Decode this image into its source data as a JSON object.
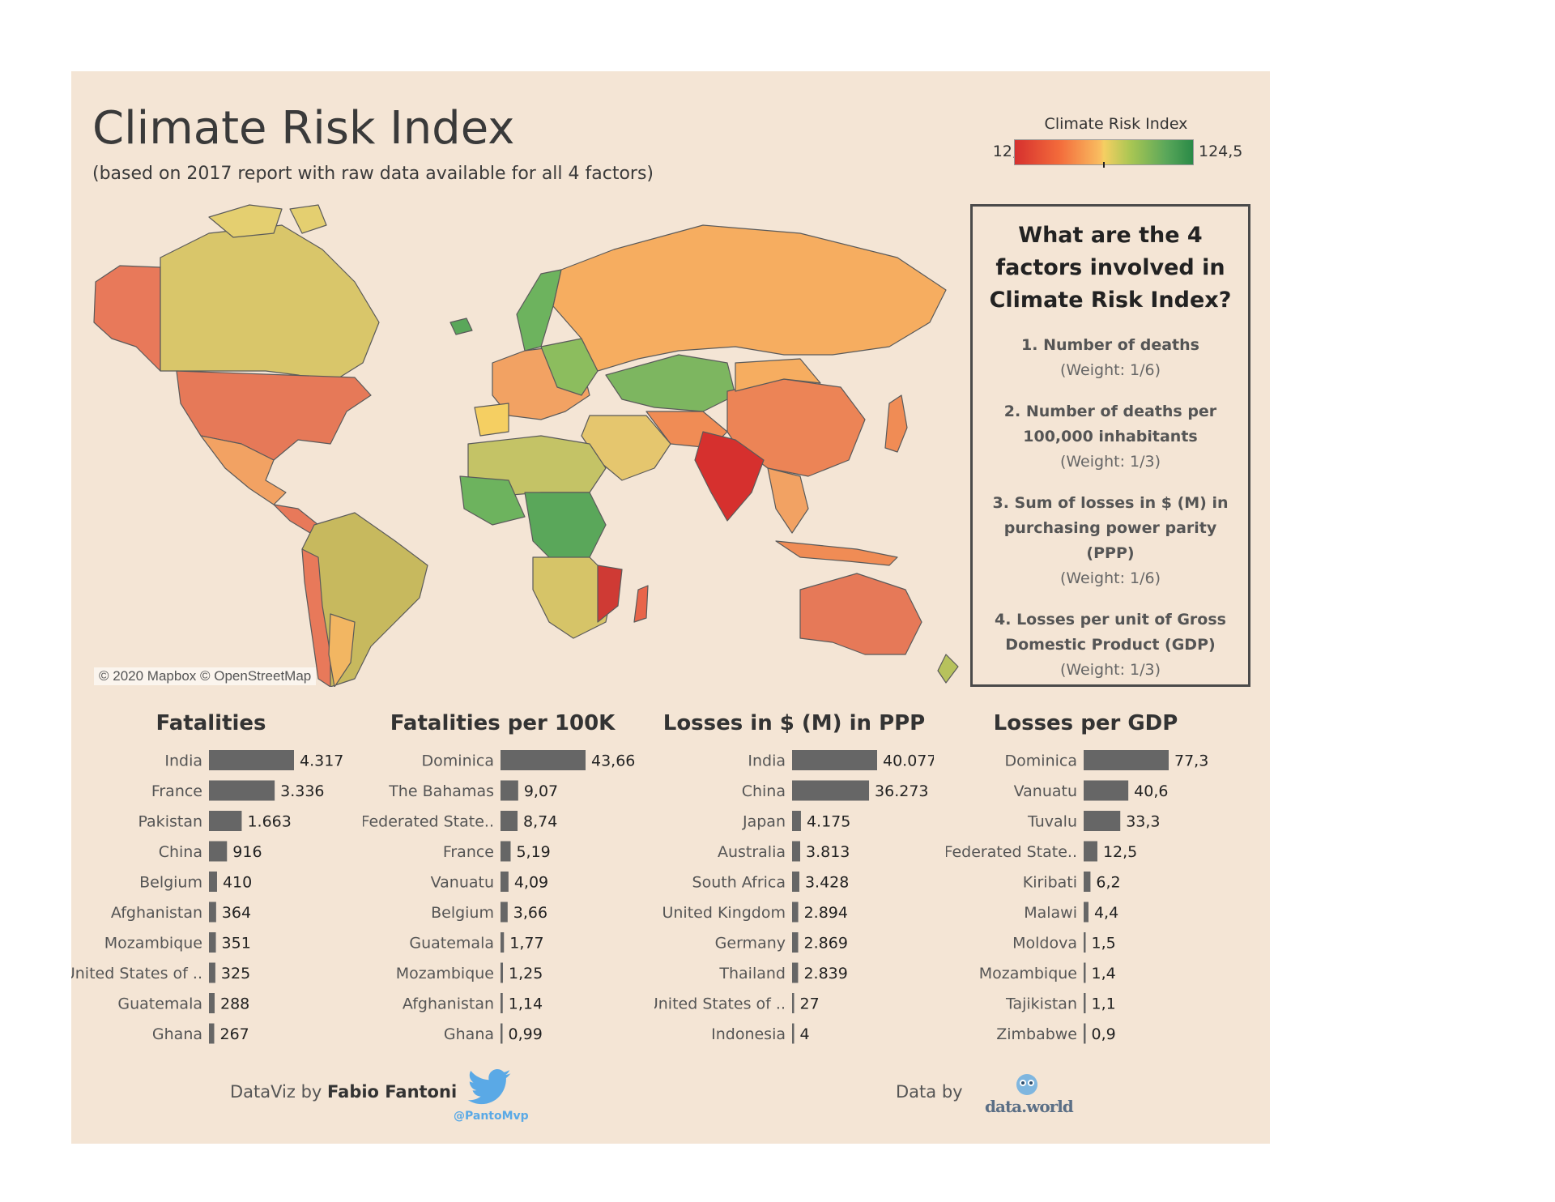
{
  "title": "Climate Risk Index",
  "subtitle": "(based on 2017 report with raw data available for all 4 factors)",
  "legend": {
    "title": "Climate Risk Index",
    "min": "12,2",
    "max": "124,5"
  },
  "map": {
    "attribution": "© 2020 Mapbox © OpenStreetMap"
  },
  "factors": {
    "title": "What are the 4 factors involved in Climate Risk Index?",
    "items": [
      {
        "name": "1. Number of deaths",
        "weight": "(Weight: 1/6)"
      },
      {
        "name": "2. Number of deaths per 100,000 inhabitants",
        "weight": "(Weight: 1/3)"
      },
      {
        "name": "3. Sum of losses in $ (M) in purchasing power parity (PPP)",
        "weight": "(Weight: 1/6)"
      },
      {
        "name": "4. Losses per unit of Gross Domestic Product (GDP)",
        "weight": "(Weight: 1/3)"
      }
    ]
  },
  "chart_data": [
    {
      "type": "bar",
      "title": "Fatalities",
      "categories": [
        "India",
        "France",
        "Pakistan",
        "China",
        "Belgium",
        "Afghanistan",
        "Mozambique",
        "United States of ..",
        "Guatemala",
        "Ghana"
      ],
      "values": [
        4317,
        3336,
        1663,
        916,
        410,
        364,
        351,
        325,
        288,
        267
      ],
      "labels": [
        "4.317",
        "3.336",
        "1.663",
        "916",
        "410",
        "364",
        "351",
        "325",
        "288",
        "267"
      ]
    },
    {
      "type": "bar",
      "title": "Fatalities per 100K",
      "categories": [
        "Dominica",
        "The Bahamas",
        "Federated State..",
        "France",
        "Vanuatu",
        "Belgium",
        "Guatemala",
        "Mozambique",
        "Afghanistan",
        "Ghana"
      ],
      "values": [
        43.66,
        9.07,
        8.74,
        5.19,
        4.09,
        3.66,
        1.77,
        1.25,
        1.14,
        0.99
      ],
      "labels": [
        "43,66",
        "9,07",
        "8,74",
        "5,19",
        "4,09",
        "3,66",
        "1,77",
        "1,25",
        "1,14",
        "0,99"
      ]
    },
    {
      "type": "bar",
      "title": "Losses in $ (M) in PPP",
      "categories": [
        "India",
        "China",
        "Japan",
        "Australia",
        "South Africa",
        "United Kingdom",
        "Germany",
        "Thailand",
        "United States of ..",
        "Indonesia"
      ],
      "values": [
        40077,
        36273,
        4175,
        3813,
        3428,
        2894,
        2869,
        2839,
        27,
        4
      ],
      "labels": [
        "40.077",
        "36.273",
        "4.175",
        "3.813",
        "3.428",
        "2.894",
        "2.869",
        "2.839",
        "27",
        "4"
      ]
    },
    {
      "type": "bar",
      "title": "Losses per GDP",
      "categories": [
        "Dominica",
        "Vanuatu",
        "Tuvalu",
        "Federated State..",
        "Kiribati",
        "Malawi",
        "Moldova",
        "Mozambique",
        "Tajikistan",
        "Zimbabwe"
      ],
      "values": [
        77.3,
        40.6,
        33.3,
        12.5,
        6.2,
        4.4,
        1.5,
        1.4,
        1.1,
        0.9
      ],
      "labels": [
        "77,3",
        "40,6",
        "33,3",
        "12,5",
        "6,2",
        "4,4",
        "1,5",
        "1,4",
        "1,1",
        "0,9"
      ]
    }
  ],
  "footer": {
    "credit_prefix": "DataViz by",
    "credit_name": "Fabio Fantoni",
    "twitter_handle": "@PantoMvp",
    "data_by": "Data by",
    "data_source": "data.world"
  },
  "colors": {
    "background": "#f4e5d5",
    "bar": "#666666",
    "twitter": "#5aa9e6"
  }
}
